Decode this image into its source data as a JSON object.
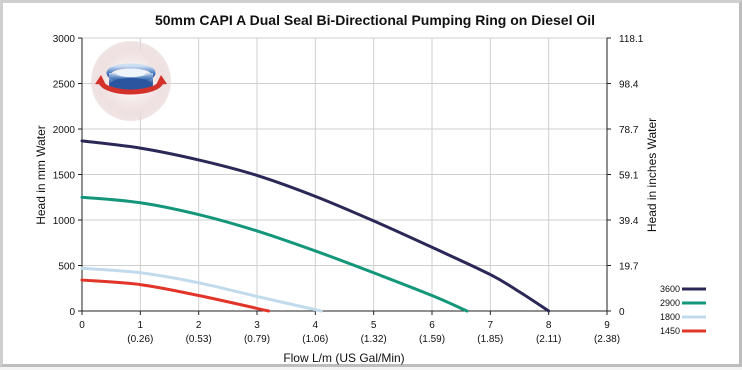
{
  "chart_data": {
    "type": "line",
    "title": "50mm CAPI A Dual Seal Bi-Directional Pumping Ring on Diesel Oil",
    "xlabel": "Flow L/m (US Gal/Min)",
    "ylabel": "Head in mm Water",
    "y2label": "Head in inches Water",
    "xlim": [
      0,
      9
    ],
    "ylim": [
      0,
      3000
    ],
    "x_ticks": [
      "0",
      "1",
      "2",
      "3",
      "4",
      "5",
      "6",
      "7",
      "8",
      "9"
    ],
    "x_ticks_sub": [
      "",
      "(0.26)",
      "(0.53)",
      "(0.79)",
      "(1.06)",
      "(1.32)",
      "(1.59)",
      "(1.85)",
      "(2.11)",
      "(2.38)"
    ],
    "y_ticks": [
      "0",
      "500",
      "1000",
      "1500",
      "2000",
      "2500",
      "3000"
    ],
    "y2_ticks": [
      "0",
      "19.7",
      "39.4",
      "59.1",
      "78.7",
      "98.4",
      "118.1"
    ],
    "grid": true,
    "legend_position": "right-bottom",
    "series": [
      {
        "name": "3600",
        "color": "#2b2857",
        "x": [
          0,
          1,
          2,
          3,
          4,
          5,
          6,
          7,
          7.5,
          8
        ],
        "y": [
          1870,
          1790,
          1660,
          1490,
          1260,
          990,
          700,
          400,
          210,
          0
        ]
      },
      {
        "name": "2900",
        "color": "#14967a",
        "x": [
          0,
          1,
          2,
          3,
          4,
          5,
          6,
          6.6
        ],
        "y": [
          1250,
          1190,
          1060,
          880,
          660,
          420,
          170,
          0
        ]
      },
      {
        "name": "1800",
        "color": "#c2dbec",
        "x": [
          0,
          1,
          2,
          3,
          4.1
        ],
        "y": [
          470,
          420,
          310,
          160,
          0
        ]
      },
      {
        "name": "1450",
        "color": "#e2352a",
        "x": [
          0,
          1,
          2,
          3.2
        ],
        "y": [
          340,
          290,
          170,
          0
        ]
      }
    ]
  },
  "logo": {
    "description_icon": "seal-ring-icon",
    "colors": {
      "ring": "#3b6fb6",
      "arrow": "#d3322b",
      "glow": "#e8d4d4"
    }
  }
}
